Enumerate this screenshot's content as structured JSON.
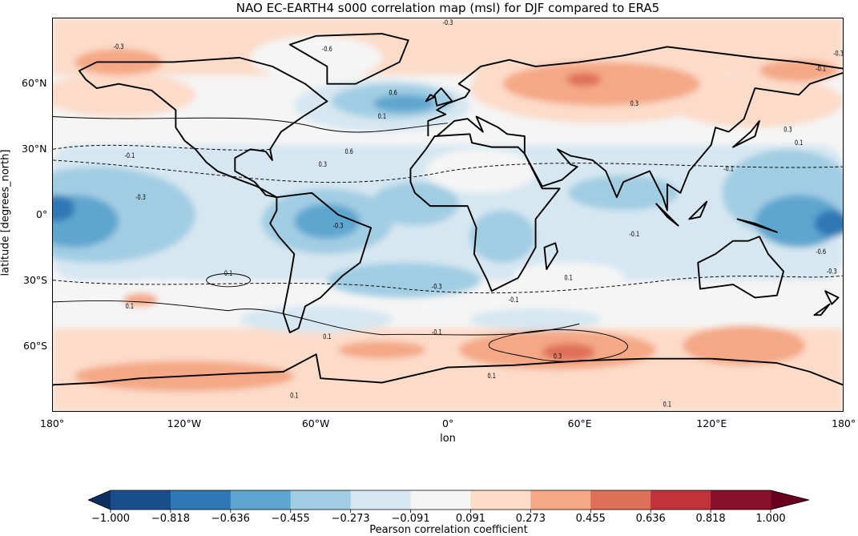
{
  "title": "NAO EC-EARTH4 s000 correlation map (msl) for DJF compared to ERA5",
  "x_axis": {
    "label": "lon",
    "ticks": [
      {
        "value": -180,
        "label": "180°"
      },
      {
        "value": -120,
        "label": "120°W"
      },
      {
        "value": -60,
        "label": "60°W"
      },
      {
        "value": 0,
        "label": "0°"
      },
      {
        "value": 60,
        "label": "60°E"
      },
      {
        "value": 120,
        "label": "120°E"
      },
      {
        "value": 180,
        "label": "180°"
      }
    ]
  },
  "y_axis": {
    "label": "latitude [degrees_north]",
    "ticks": [
      {
        "value": 60,
        "label": "60°N"
      },
      {
        "value": 30,
        "label": "30°N"
      },
      {
        "value": 0,
        "label": "0°"
      },
      {
        "value": -30,
        "label": "30°S"
      },
      {
        "value": -60,
        "label": "60°S"
      }
    ]
  },
  "colorbar": {
    "label": "Pearson correlation coefficient",
    "ticks": [
      "−1.000",
      "−0.818",
      "−0.636",
      "−0.455",
      "−0.273",
      "−0.091",
      "0.091",
      "0.273",
      "0.455",
      "0.636",
      "0.818",
      "1.000"
    ],
    "colors": [
      "#1a4d8b",
      "#2f78b5",
      "#5ea6cf",
      "#a1cde3",
      "#d6e7f1",
      "#f5f5f5",
      "#fcdbc9",
      "#f4a886",
      "#de6f58",
      "#c1323a",
      "#870f27"
    ],
    "under_color": "#0b3060",
    "over_color": "#67001f"
  },
  "contour_labels": [
    {
      "lon": 0,
      "lat": 87,
      "text": "-0.3"
    },
    {
      "lon": -150,
      "lat": 76,
      "text": "-0.3"
    },
    {
      "lon": -55,
      "lat": 75,
      "text": "-0.6"
    },
    {
      "lon": -25,
      "lat": 55,
      "text": "0.6"
    },
    {
      "lon": -30,
      "lat": 44,
      "text": "0.1"
    },
    {
      "lon": -45,
      "lat": 28,
      "text": "0.6"
    },
    {
      "lon": -57,
      "lat": 22,
      "text": "0.3"
    },
    {
      "lon": -145,
      "lat": 26,
      "text": "-0.1"
    },
    {
      "lon": -140,
      "lat": 7,
      "text": "-0.3"
    },
    {
      "lon": -50,
      "lat": -6,
      "text": "-0.3"
    },
    {
      "lon": -100,
      "lat": -28,
      "text": "0.1"
    },
    {
      "lon": -145,
      "lat": -43,
      "text": "0.1"
    },
    {
      "lon": -5,
      "lat": -34,
      "text": "-0.3"
    },
    {
      "lon": 30,
      "lat": -40,
      "text": "-0.1"
    },
    {
      "lon": 55,
      "lat": -30,
      "text": "0.1"
    },
    {
      "lon": -5,
      "lat": -55,
      "text": "-0.1"
    },
    {
      "lon": -55,
      "lat": -57,
      "text": "0.1"
    },
    {
      "lon": 50,
      "lat": -66,
      "text": "0.3"
    },
    {
      "lon": 20,
      "lat": -75,
      "text": "0.1"
    },
    {
      "lon": -70,
      "lat": -84,
      "text": "0.1"
    },
    {
      "lon": 100,
      "lat": -88,
      "text": "0.1"
    },
    {
      "lon": 85,
      "lat": 50,
      "text": "0.3"
    },
    {
      "lon": 155,
      "lat": 38,
      "text": "0.3"
    },
    {
      "lon": 160,
      "lat": 32,
      "text": "0.1"
    },
    {
      "lon": 128,
      "lat": 20,
      "text": "-0.1"
    },
    {
      "lon": 85,
      "lat": -10,
      "text": "-0.1"
    },
    {
      "lon": 170,
      "lat": -18,
      "text": "-0.6"
    },
    {
      "lon": 175,
      "lat": -27,
      "text": "-0.3"
    },
    {
      "lon": 178,
      "lat": 73,
      "text": "-0.3"
    },
    {
      "lon": 170,
      "lat": 66,
      "text": "-0.1"
    }
  ]
}
